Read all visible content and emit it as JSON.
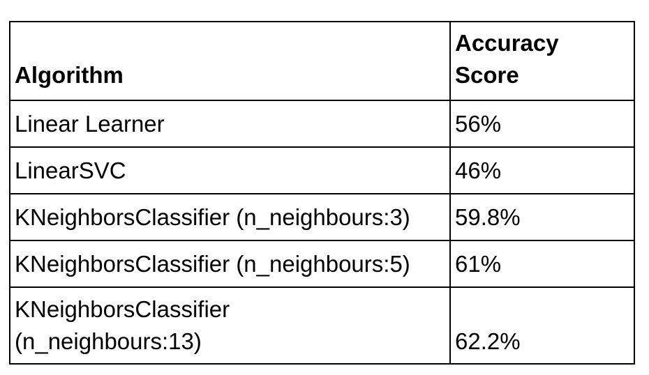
{
  "table": {
    "headers": {
      "algorithm": "Algorithm",
      "accuracy_line1": "Accuracy",
      "accuracy_line2": "Score"
    },
    "rows": [
      {
        "algorithm": "Linear Learner",
        "accuracy": "56%"
      },
      {
        "algorithm": "LinearSVC",
        "accuracy": "46%"
      },
      {
        "algorithm": "KNeighborsClassifier (n_neighbours:3)",
        "accuracy": "59.8%"
      },
      {
        "algorithm": "KNeighborsClassifier (n_neighbours:5)",
        "accuracy": "61%"
      },
      {
        "algorithm_line1": "KNeighborsClassifier",
        "algorithm_line2": "(n_neighbours:13)",
        "accuracy": "62.2%"
      }
    ]
  }
}
